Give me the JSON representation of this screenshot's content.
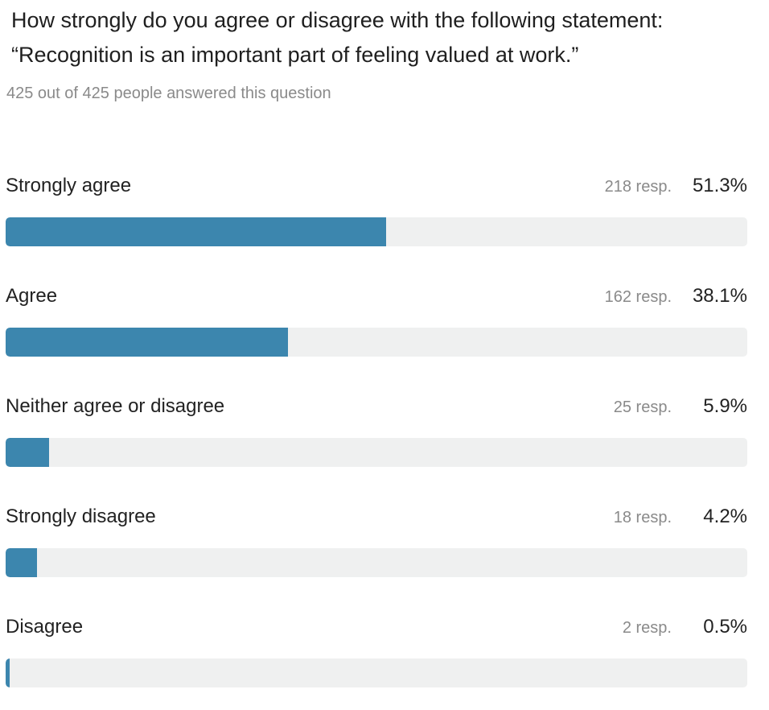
{
  "question": {
    "line1": "How strongly do you agree or disagree with the following statement:",
    "line2": "“Recognition is an important part of feeling valued at work.”"
  },
  "answered_text": "425 out of 425 people answered this question",
  "colors": {
    "bar_fill": "#3c86ae",
    "bar_track": "#eff0f0"
  },
  "chart_data": {
    "type": "bar",
    "orientation": "horizontal",
    "xlim": [
      0,
      100
    ],
    "categories": [
      "Strongly agree",
      "Agree",
      "Neither agree or disagree",
      "Strongly disagree",
      "Disagree"
    ],
    "responses": [
      "218 resp.",
      "162 resp.",
      "25 resp.",
      "18 resp.",
      "2 resp."
    ],
    "percent_labels": [
      "51.3%",
      "38.1%",
      "5.9%",
      "4.2%",
      "0.5%"
    ],
    "values": [
      51.3,
      38.1,
      5.9,
      4.2,
      0.5
    ]
  }
}
